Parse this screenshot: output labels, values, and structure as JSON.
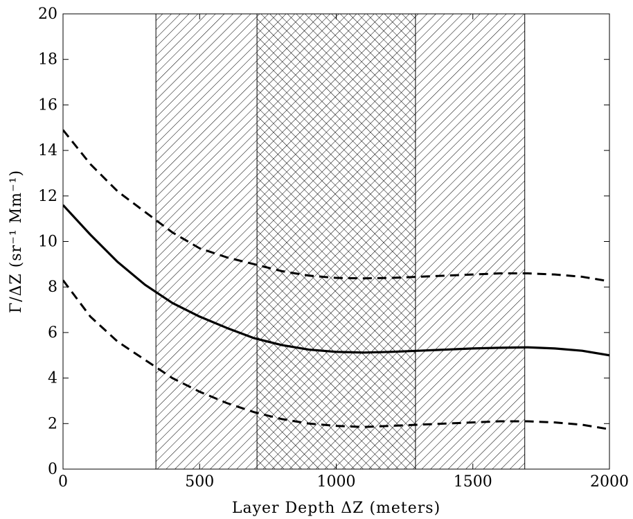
{
  "chart_data": {
    "type": "line",
    "title": "",
    "xlabel": "Layer Depth ΔZ (meters)",
    "ylabel": "Γ/ΔZ (sr⁻¹ Mm⁻¹)",
    "xlim": [
      0,
      2000
    ],
    "ylim": [
      0,
      20
    ],
    "xticks": [
      0,
      500,
      1000,
      1500,
      2000
    ],
    "yticks": [
      0,
      2,
      4,
      6,
      8,
      10,
      12,
      14,
      16,
      18,
      20
    ],
    "grid": false,
    "legend": "none",
    "shaded_regions": [
      {
        "x_range": [
          340,
          1690
        ],
        "hatch": "diagonal"
      },
      {
        "x_range": [
          710,
          1290
        ],
        "hatch": "diagonal-opposite"
      }
    ],
    "series": [
      {
        "style": "solid",
        "color": "#000000",
        "x": [
          0,
          100,
          200,
          300,
          400,
          500,
          600,
          700,
          800,
          900,
          1000,
          1100,
          1200,
          1300,
          1400,
          1500,
          1600,
          1700,
          1800,
          1900,
          2000
        ],
        "y": [
          11.6,
          10.3,
          9.1,
          8.1,
          7.3,
          6.7,
          6.2,
          5.75,
          5.45,
          5.25,
          5.15,
          5.12,
          5.15,
          5.2,
          5.25,
          5.3,
          5.33,
          5.35,
          5.3,
          5.2,
          5.0
        ]
      },
      {
        "style": "dashed",
        "color": "#000000",
        "x": [
          0,
          100,
          200,
          300,
          400,
          500,
          600,
          700,
          800,
          900,
          1000,
          1100,
          1200,
          1300,
          1400,
          1500,
          1600,
          1700,
          1800,
          1900,
          2000
        ],
        "y": [
          14.9,
          13.4,
          12.2,
          11.3,
          10.4,
          9.7,
          9.3,
          9.0,
          8.7,
          8.5,
          8.4,
          8.38,
          8.4,
          8.45,
          8.5,
          8.55,
          8.6,
          8.6,
          8.55,
          8.45,
          8.25
        ]
      },
      {
        "style": "dashed",
        "color": "#000000",
        "x": [
          0,
          100,
          200,
          300,
          400,
          500,
          600,
          700,
          800,
          900,
          1000,
          1100,
          1200,
          1300,
          1400,
          1500,
          1600,
          1700,
          1800,
          1900,
          2000
        ],
        "y": [
          8.3,
          6.7,
          5.6,
          4.8,
          4.0,
          3.4,
          2.9,
          2.5,
          2.2,
          2.0,
          1.9,
          1.85,
          1.9,
          1.95,
          2.0,
          2.05,
          2.1,
          2.1,
          2.05,
          1.95,
          1.75
        ]
      }
    ]
  }
}
